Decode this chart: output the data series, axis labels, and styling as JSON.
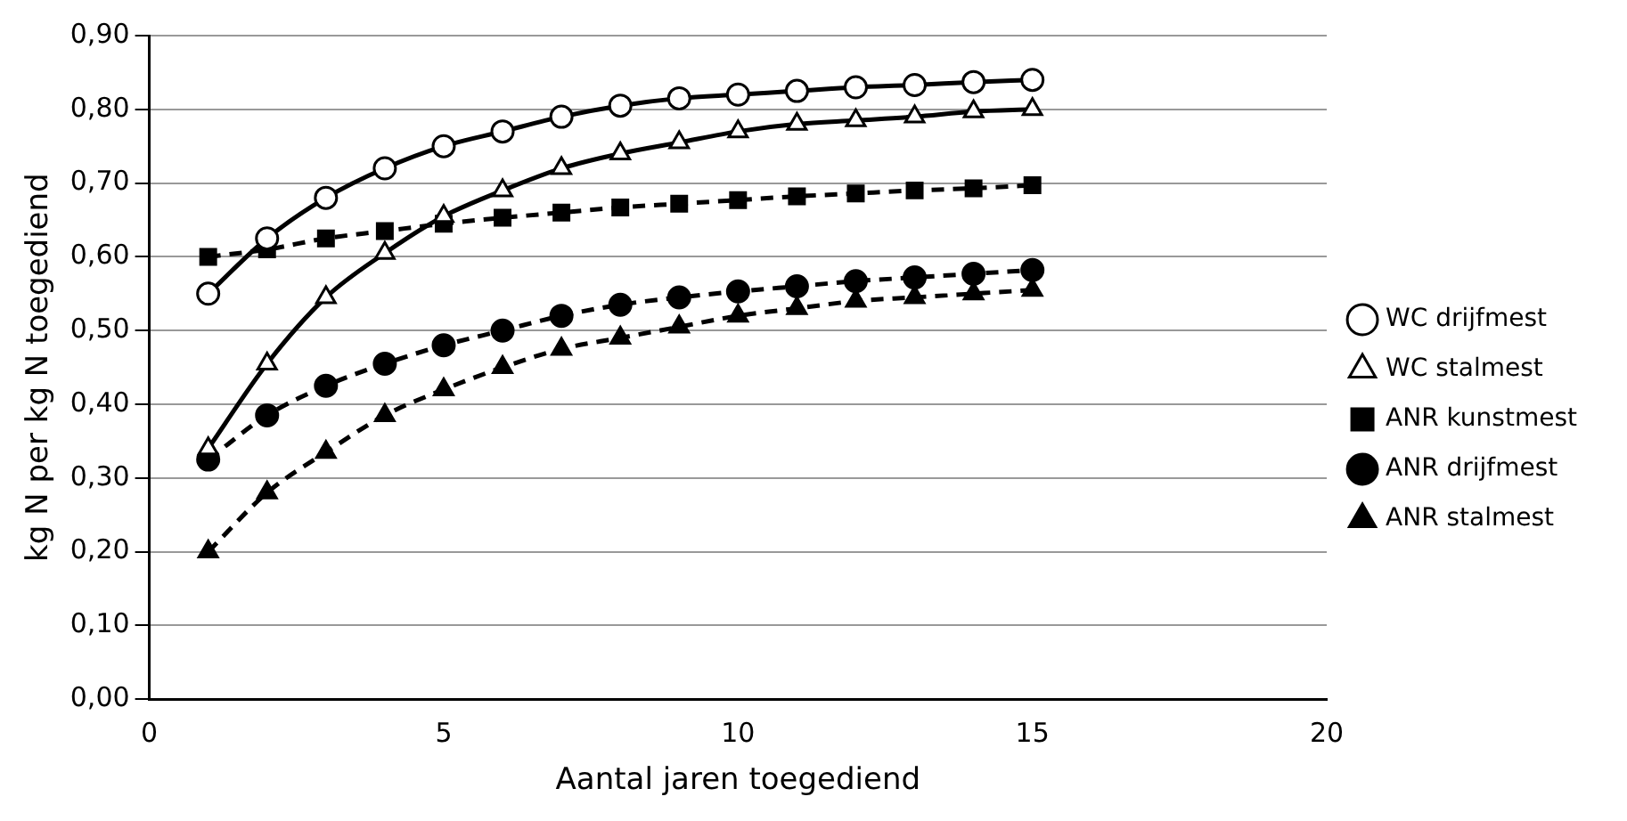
{
  "chart_data": {
    "type": "line",
    "xlabel": "Aantal jaren toegediend",
    "ylabel": "kg N per kg N toegediend",
    "x": [
      1,
      2,
      3,
      4,
      5,
      6,
      7,
      8,
      9,
      10,
      11,
      12,
      13,
      14,
      15
    ],
    "xlim": [
      0,
      20
    ],
    "xticks": [
      0,
      5,
      10,
      15,
      20
    ],
    "ylim": [
      0,
      0.9
    ],
    "yticks": [
      {
        "value": 0,
        "label": "0,00"
      },
      {
        "value": 0.1,
        "label": "0,10"
      },
      {
        "value": 0.2,
        "label": "0,20"
      },
      {
        "value": 0.3,
        "label": "0,30"
      },
      {
        "value": 0.4,
        "label": "0,40"
      },
      {
        "value": 0.5,
        "label": "0,50"
      },
      {
        "value": 0.6,
        "label": "0,60"
      },
      {
        "value": 0.7,
        "label": "0,70"
      },
      {
        "value": 0.8,
        "label": "0,80"
      },
      {
        "value": 0.9,
        "label": "0,90"
      }
    ],
    "grid": "y",
    "legend": "right",
    "series": [
      {
        "name": "WC drijfmest",
        "color": "#000000",
        "marker": "circle",
        "line_style": "solid",
        "values": [
          0.55,
          0.625,
          0.68,
          0.72,
          0.75,
          0.77,
          0.79,
          0.805,
          0.815,
          0.82,
          0.825,
          0.83,
          0.833,
          0.837,
          0.84
        ]
      },
      {
        "name": "WC stalmest",
        "color": "#000000",
        "marker": "triangle",
        "line_style": "solid",
        "values": [
          0.34,
          0.455,
          0.545,
          0.605,
          0.655,
          0.69,
          0.72,
          0.74,
          0.755,
          0.77,
          0.78,
          0.785,
          0.79,
          0.797,
          0.8
        ]
      },
      {
        "name": "ANR kunstmest",
        "color": "#000000",
        "marker": "square",
        "line_style": "dashed",
        "values": [
          0.6,
          0.61,
          0.625,
          0.635,
          0.645,
          0.653,
          0.66,
          0.667,
          0.672,
          0.677,
          0.682,
          0.686,
          0.69,
          0.693,
          0.697
        ]
      },
      {
        "name": "ANR drijfmest",
        "color": "#000000",
        "marker": "circle",
        "line_style": "dashed",
        "values": [
          0.325,
          0.385,
          0.425,
          0.455,
          0.48,
          0.5,
          0.52,
          0.535,
          0.545,
          0.553,
          0.56,
          0.567,
          0.572,
          0.577,
          0.582
        ]
      },
      {
        "name": "ANR stalmest",
        "color": "#000000",
        "marker": "triangle",
        "line_style": "dashed",
        "values": [
          0.2,
          0.28,
          0.335,
          0.385,
          0.42,
          0.45,
          0.475,
          0.49,
          0.505,
          0.52,
          0.53,
          0.54,
          0.545,
          0.55,
          0.555
        ]
      }
    ]
  }
}
